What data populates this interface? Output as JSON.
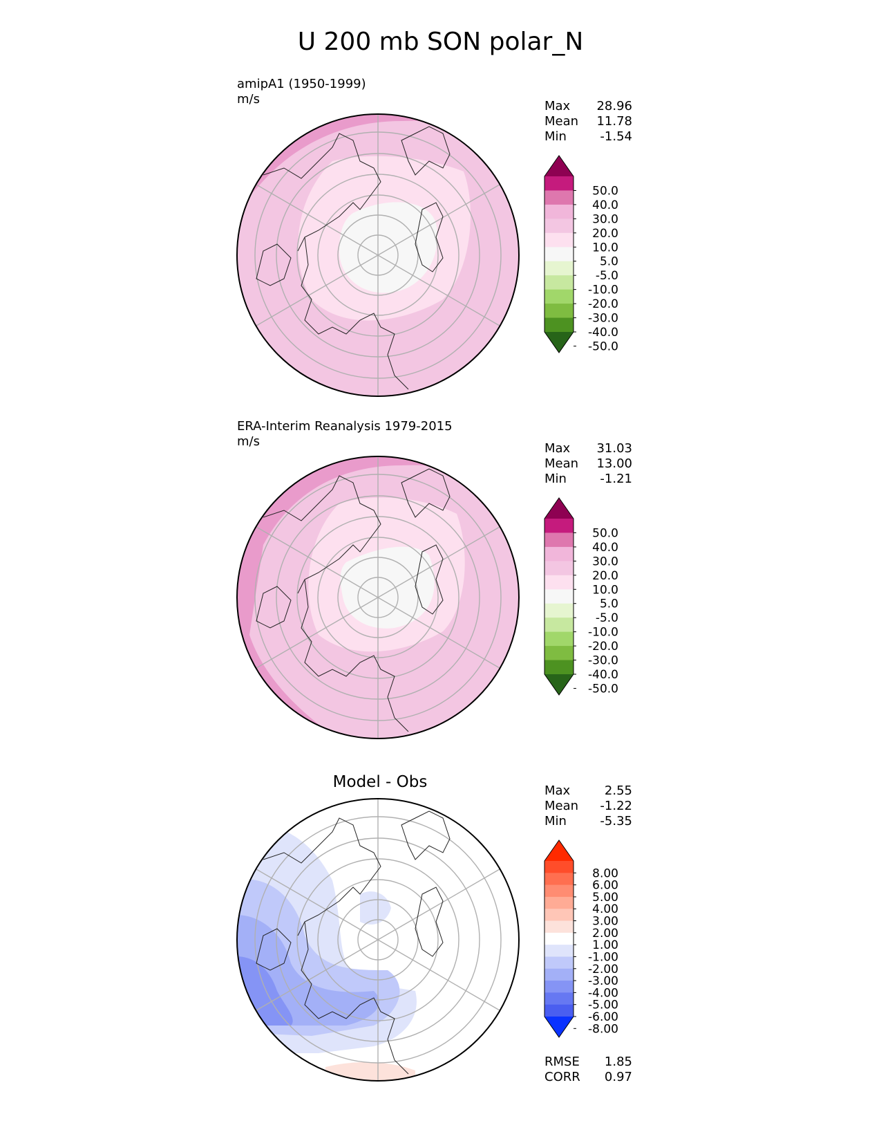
{
  "title": "U 200 mb SON polar_N",
  "panels": [
    {
      "case": "amipA1 (1950-1999)",
      "units": "m/s",
      "stats": {
        "max_label": "Max",
        "max": "28.96",
        "mean_label": "Mean",
        "mean": "11.78",
        "min_label": "Min",
        "min": "-1.54"
      }
    },
    {
      "case": "ERA-Interim Reanalysis 1979-2015",
      "units": "m/s",
      "stats": {
        "max_label": "Max",
        "max": "31.03",
        "mean_label": "Mean",
        "mean": "13.00",
        "min_label": "Min",
        "min": "-1.21"
      }
    },
    {
      "title": "Model - Obs",
      "stats": {
        "max_label": "Max",
        "max": "2.55",
        "mean_label": "Mean",
        "mean": "-1.22",
        "min_label": "Min",
        "min": "-5.35"
      },
      "rmse_label": "RMSE",
      "rmse": "1.85",
      "corr_label": "CORR",
      "corr": "0.97"
    }
  ],
  "colorbars": {
    "field": {
      "levels": [
        "50.0",
        "40.0",
        "30.0",
        "20.0",
        "10.0",
        "5.0",
        "-5.0",
        "-10.0",
        "-20.0",
        "-30.0",
        "-40.0",
        "-50.0"
      ],
      "colors": [
        "#8e0152",
        "#c51b7d",
        "#de77ae",
        "#f1b6da",
        "#f3c6e2",
        "#fde0ef",
        "#f7f7f7",
        "#e6f5d0",
        "#c7e8a0",
        "#a1d76a",
        "#7fbc41",
        "#4d9221",
        "#276419"
      ]
    },
    "diff": {
      "levels": [
        "8.00",
        "6.00",
        "5.00",
        "4.00",
        "3.00",
        "2.00",
        "1.00",
        "-1.00",
        "-2.00",
        "-3.00",
        "-4.00",
        "-5.00",
        "-6.00",
        "-8.00"
      ],
      "colors": [
        "#ff2a00",
        "#ff4d2a",
        "#ff6f50",
        "#ff8c72",
        "#ffab95",
        "#ffc6b7",
        "#fde2db",
        "#ffffff",
        "#dfe4fb",
        "#c0c9fa",
        "#a3b0f7",
        "#8594f5",
        "#6678f2",
        "#4a5ef0",
        "#0a32ff"
      ]
    }
  },
  "chart_data": [
    {
      "type": "heatmap",
      "title": "amipA1 (1950-1999)",
      "projection": "north polar stereographic",
      "units": "m/s",
      "max": 28.96,
      "mean": 11.78,
      "min": -1.54,
      "contour_levels": [
        -50,
        -40,
        -30,
        -20,
        -10,
        -5,
        5,
        10,
        20,
        30,
        40,
        50
      ]
    },
    {
      "type": "heatmap",
      "title": "ERA-Interim Reanalysis 1979-2015",
      "projection": "north polar stereographic",
      "units": "m/s",
      "max": 31.03,
      "mean": 13.0,
      "min": -1.21,
      "contour_levels": [
        -50,
        -40,
        -30,
        -20,
        -10,
        -5,
        5,
        10,
        20,
        30,
        40,
        50
      ]
    },
    {
      "type": "heatmap",
      "title": "Model - Obs",
      "projection": "north polar stereographic",
      "max": 2.55,
      "mean": -1.22,
      "min": -5.35,
      "rmse": 1.85,
      "corr": 0.97,
      "contour_levels": [
        -8,
        -6,
        -5,
        -4,
        -3,
        -2,
        -1,
        1,
        2,
        3,
        4,
        5,
        6,
        8
      ]
    }
  ]
}
